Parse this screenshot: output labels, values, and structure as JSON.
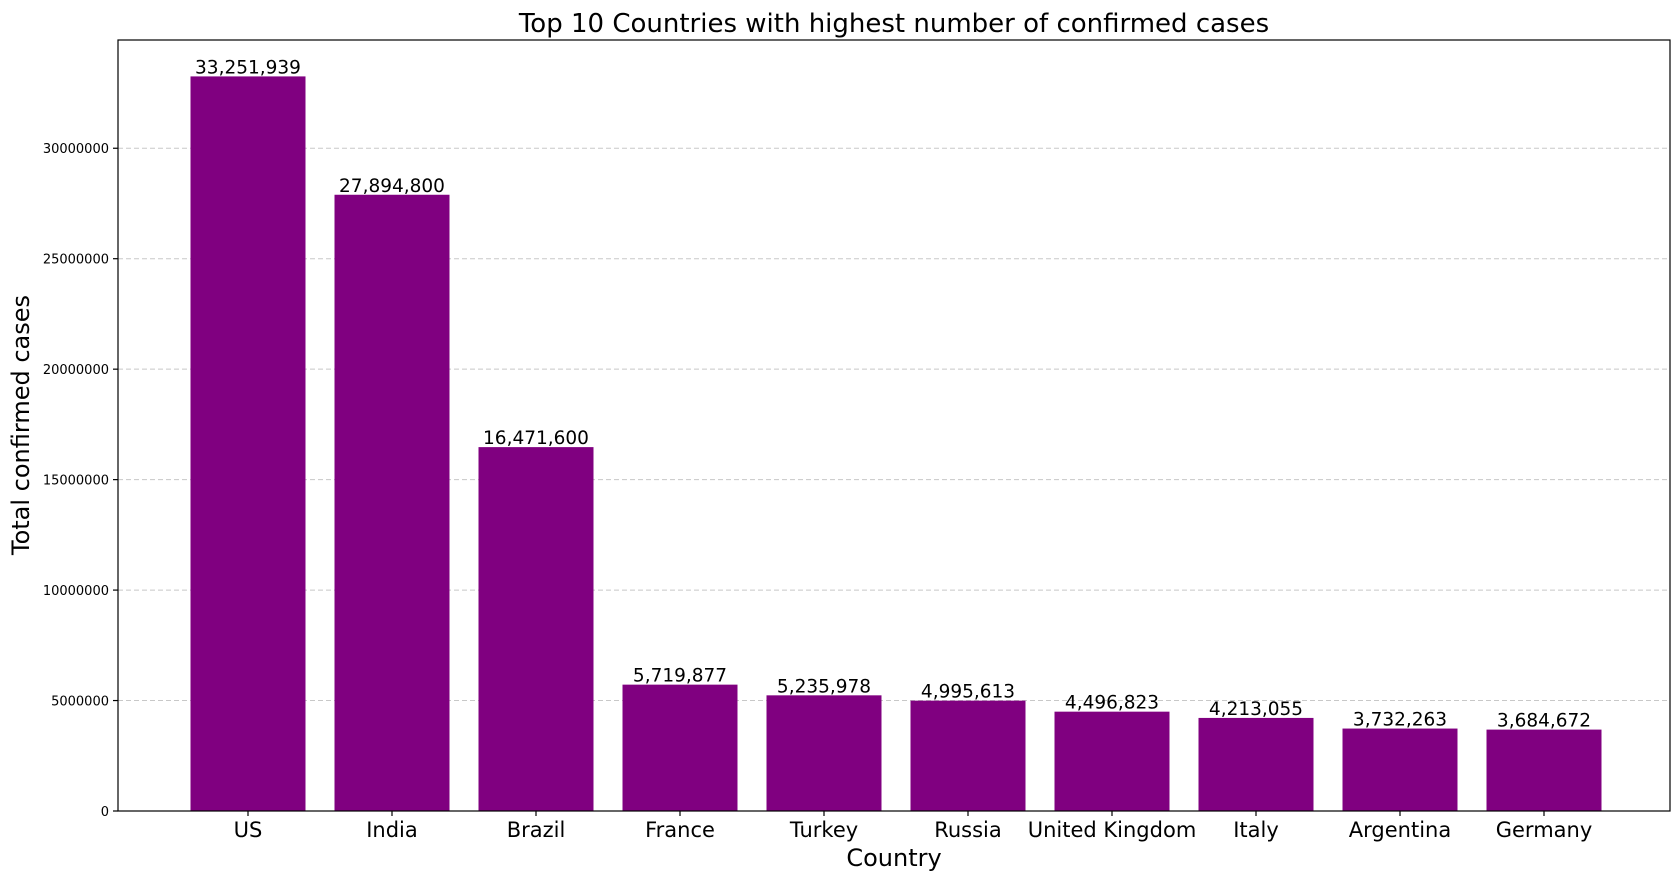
{
  "chart_data": {
    "type": "bar",
    "title": "Top 10 Countries with highest number of confirmed cases",
    "xlabel": "Country",
    "ylabel": "Total confirmed cases",
    "categories": [
      "US",
      "India",
      "Brazil",
      "France",
      "Turkey",
      "Russia",
      "United Kingdom",
      "Italy",
      "Argentina",
      "Germany"
    ],
    "values": [
      33251939,
      27894800,
      16471600,
      5719877,
      5235978,
      4995613,
      4496823,
      4213055,
      3732263,
      3684672
    ],
    "value_labels": [
      "33,251,939",
      "27,894,800",
      "16,471,600",
      "5,719,877",
      "5,235,978",
      "4,995,613",
      "4,496,823",
      "4,213,055",
      "3,732,263",
      "3,684,672"
    ],
    "yticks": [
      0,
      5000000,
      10000000,
      15000000,
      20000000,
      25000000,
      30000000
    ],
    "ytick_labels": [
      "0",
      "5000000",
      "10000000",
      "15000000",
      "20000000",
      "25000000",
      "30000000"
    ],
    "ylim": [
      0,
      34900000
    ],
    "bar_color": "#800080",
    "grid": "y-dashed",
    "legend": "none"
  }
}
